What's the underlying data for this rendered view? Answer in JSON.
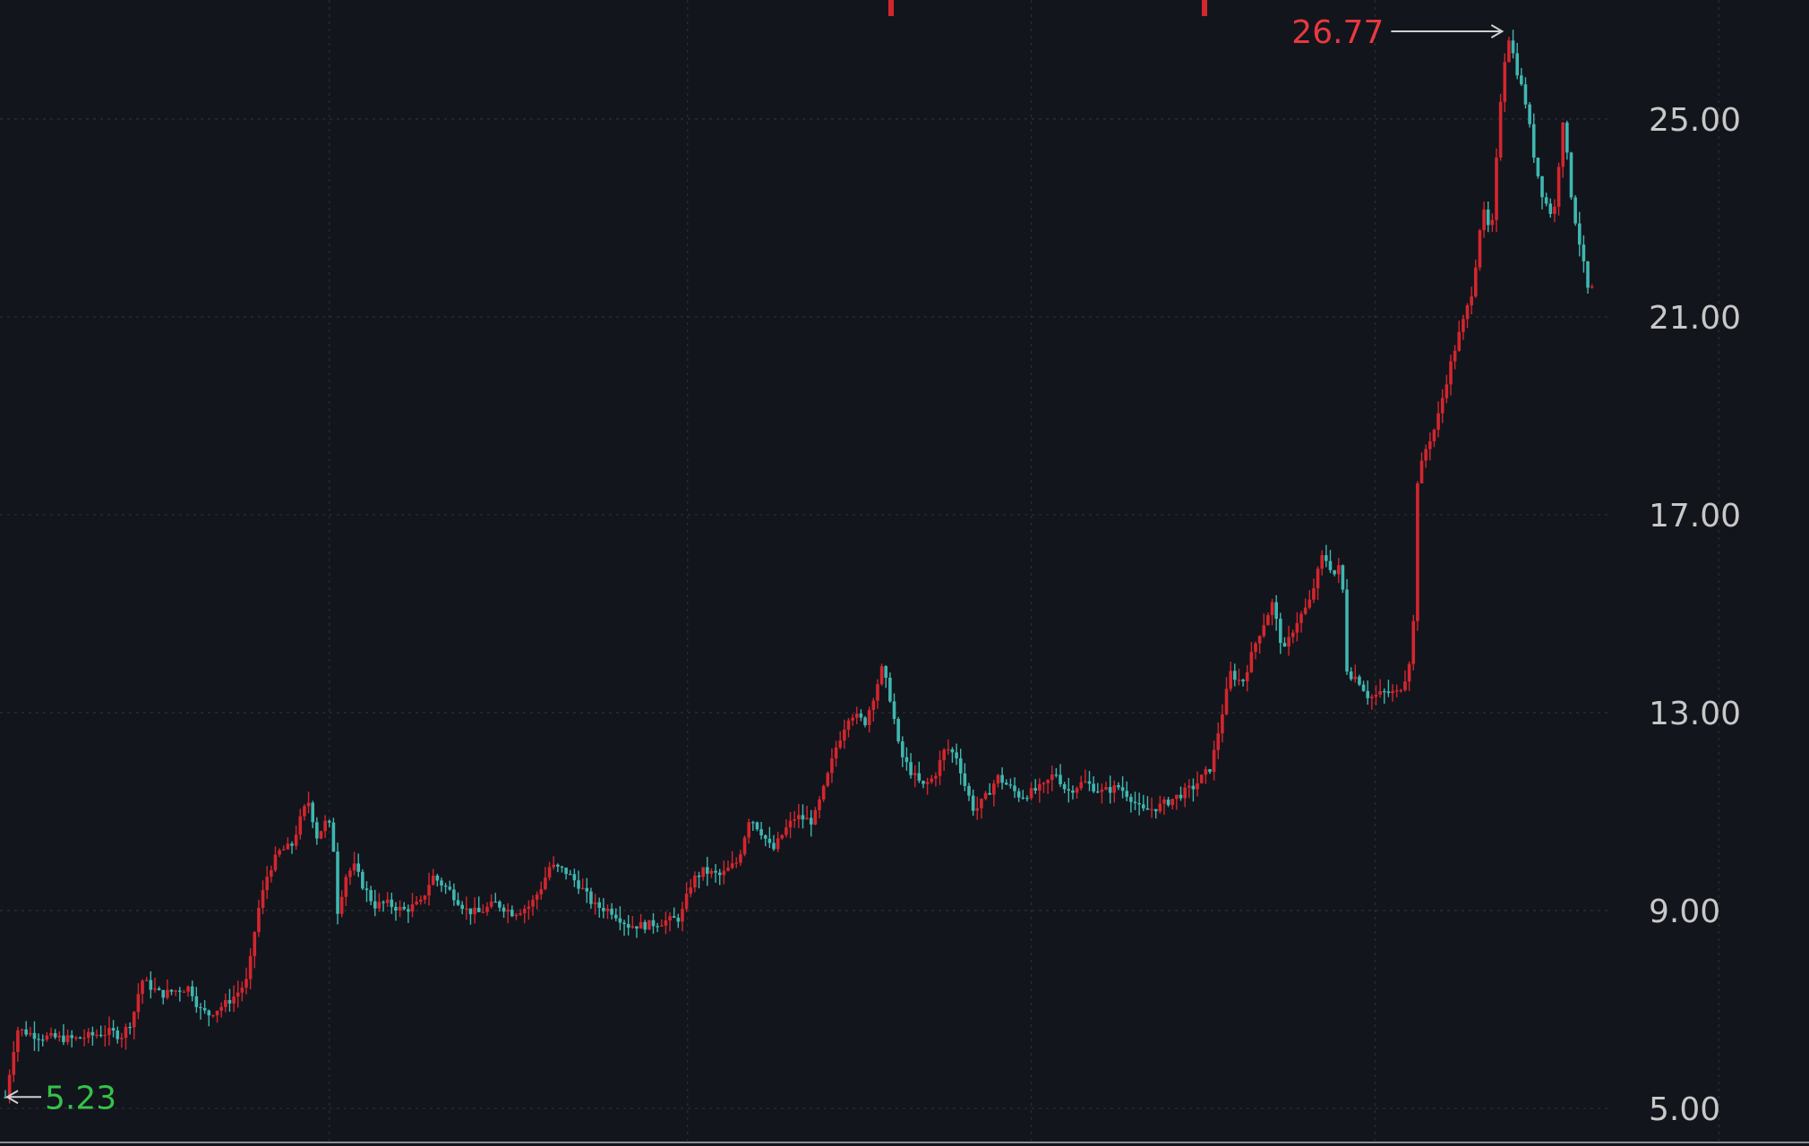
{
  "chart_data": {
    "type": "candlestick",
    "ylim": [
      5.0,
      27.3
    ],
    "grid": true,
    "y_ticks": [
      "5.00",
      "9.00",
      "13.00",
      "17.00",
      "21.00",
      "25.00"
    ],
    "y_tick_values": [
      5.0,
      9.0,
      13.0,
      17.0,
      21.0,
      25.0
    ],
    "max_annotation": {
      "label": "26.77",
      "value": 26.77
    },
    "min_annotation": {
      "label": "5.23",
      "value": 5.23
    },
    "colors": {
      "up": "#d3262e",
      "down": "#3fb7b0",
      "max_label": "#e8393f",
      "min_label": "#35c24a",
      "axis_text": "#c8c8c8",
      "background": "#13151c",
      "grid": "#2a2d36"
    },
    "price_path": [
      [
        0,
        5.23
      ],
      [
        10,
        6.6
      ],
      [
        30,
        6.45
      ],
      [
        60,
        6.4
      ],
      [
        80,
        6.5
      ],
      [
        92,
        6.55
      ],
      [
        100,
        6.45
      ],
      [
        110,
        6.8
      ],
      [
        118,
        7.6
      ],
      [
        135,
        7.3
      ],
      [
        150,
        7.4
      ],
      [
        160,
        7.45
      ],
      [
        168,
        7.0
      ],
      [
        176,
        6.9
      ],
      [
        190,
        7.1
      ],
      [
        200,
        7.3
      ],
      [
        210,
        7.6
      ],
      [
        218,
        8.9
      ],
      [
        228,
        9.8
      ],
      [
        238,
        10.2
      ],
      [
        248,
        10.3
      ],
      [
        258,
        11.0
      ],
      [
        263,
        11.2
      ],
      [
        270,
        10.5
      ],
      [
        278,
        10.8
      ],
      [
        284,
        10.6
      ],
      [
        286,
        8.8
      ],
      [
        295,
        9.7
      ],
      [
        302,
        9.9
      ],
      [
        310,
        9.5
      ],
      [
        320,
        9.1
      ],
      [
        330,
        9.15
      ],
      [
        345,
        9.0
      ],
      [
        360,
        9.15
      ],
      [
        370,
        9.7
      ],
      [
        385,
        9.4
      ],
      [
        400,
        9.0
      ],
      [
        410,
        8.95
      ],
      [
        425,
        9.15
      ],
      [
        440,
        8.95
      ],
      [
        455,
        9.1
      ],
      [
        465,
        9.5
      ],
      [
        472,
        9.9
      ],
      [
        485,
        9.8
      ],
      [
        498,
        9.5
      ],
      [
        510,
        9.1
      ],
      [
        525,
        9.0
      ],
      [
        540,
        8.7
      ],
      [
        555,
        8.7
      ],
      [
        575,
        8.8
      ],
      [
        585,
        8.85
      ],
      [
        595,
        9.6
      ],
      [
        605,
        9.8
      ],
      [
        620,
        9.7
      ],
      [
        635,
        10.0
      ],
      [
        645,
        10.9
      ],
      [
        655,
        10.6
      ],
      [
        665,
        10.2
      ],
      [
        675,
        10.6
      ],
      [
        685,
        10.9
      ],
      [
        700,
        10.8
      ],
      [
        710,
        11.5
      ],
      [
        720,
        12.3
      ],
      [
        732,
        13.0
      ],
      [
        745,
        12.8
      ],
      [
        752,
        13.3
      ],
      [
        760,
        13.9
      ],
      [
        768,
        13.2
      ],
      [
        775,
        12.2
      ],
      [
        785,
        11.8
      ],
      [
        795,
        11.5
      ],
      [
        805,
        11.7
      ],
      [
        815,
        12.3
      ],
      [
        825,
        12.1
      ],
      [
        832,
        11.5
      ],
      [
        840,
        11.0
      ],
      [
        850,
        11.3
      ],
      [
        860,
        11.7
      ],
      [
        870,
        11.5
      ],
      [
        880,
        11.3
      ],
      [
        890,
        11.4
      ],
      [
        900,
        11.5
      ],
      [
        910,
        11.8
      ],
      [
        920,
        11.4
      ],
      [
        935,
        11.6
      ],
      [
        950,
        11.4
      ],
      [
        965,
        11.5
      ],
      [
        975,
        11.3
      ],
      [
        985,
        11.0
      ],
      [
        1000,
        11.1
      ],
      [
        1015,
        11.3
      ],
      [
        1030,
        11.5
      ],
      [
        1045,
        11.9
      ],
      [
        1052,
        12.7
      ],
      [
        1062,
        13.8
      ],
      [
        1072,
        13.6
      ],
      [
        1085,
        14.5
      ],
      [
        1098,
        15.2
      ],
      [
        1108,
        14.2
      ],
      [
        1118,
        14.8
      ],
      [
        1130,
        15.2
      ],
      [
        1142,
        16.2
      ],
      [
        1152,
        15.8
      ],
      [
        1158,
        16.0
      ],
      [
        1163,
        13.8
      ],
      [
        1172,
        13.7
      ],
      [
        1182,
        13.3
      ],
      [
        1195,
        13.4
      ],
      [
        1207,
        13.4
      ],
      [
        1215,
        13.8
      ],
      [
        1220,
        14.5
      ],
      [
        1224,
        17.7
      ],
      [
        1232,
        18.4
      ],
      [
        1240,
        18.8
      ],
      [
        1250,
        19.8
      ],
      [
        1258,
        20.5
      ],
      [
        1265,
        21.0
      ],
      [
        1272,
        21.6
      ],
      [
        1280,
        23.2
      ],
      [
        1288,
        22.6
      ],
      [
        1296,
        25.4
      ],
      [
        1302,
        26.77
      ],
      [
        1310,
        26.0
      ],
      [
        1318,
        25.3
      ],
      [
        1326,
        24.1
      ],
      [
        1333,
        23.4
      ],
      [
        1342,
        23.0
      ],
      [
        1350,
        25.0
      ],
      [
        1358,
        23.3
      ],
      [
        1366,
        22.3
      ],
      [
        1372,
        21.5
      ],
      [
        1378,
        21.6
      ]
    ]
  }
}
